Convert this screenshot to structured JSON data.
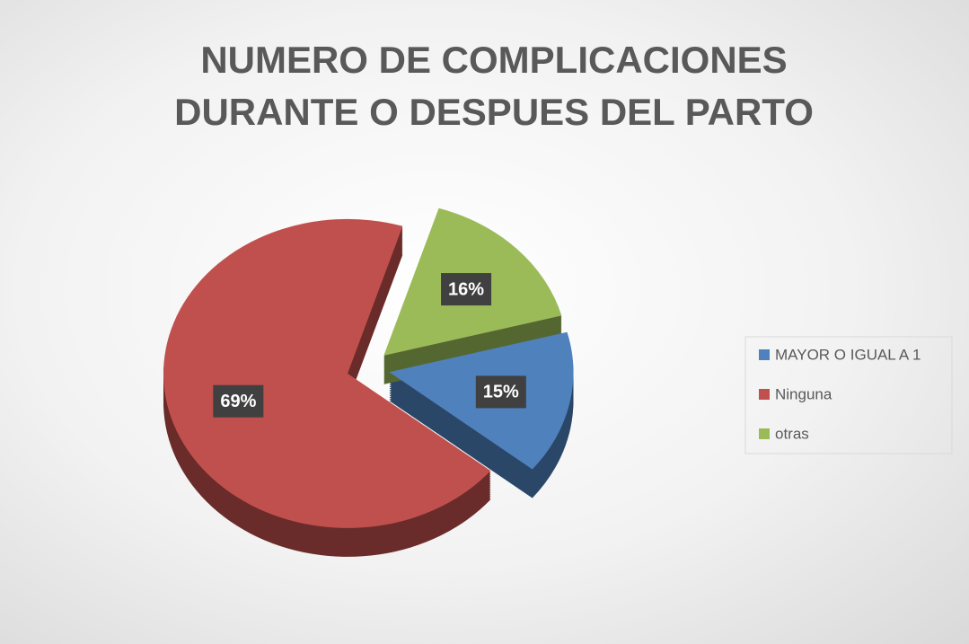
{
  "chart_data": {
    "type": "pie",
    "title": "NUMERO DE COMPLICACIONES DURANTE O DESPUES DEL PARTO",
    "categories": [
      "MAYOR O IGUAL A 1",
      "Ninguna",
      "otras"
    ],
    "values": [
      15,
      69,
      16
    ],
    "value_labels": [
      "15%",
      "69%",
      "16%"
    ],
    "colors": [
      "#4f81bd",
      "#c0504d",
      "#9bbb59"
    ],
    "legend": "right"
  }
}
